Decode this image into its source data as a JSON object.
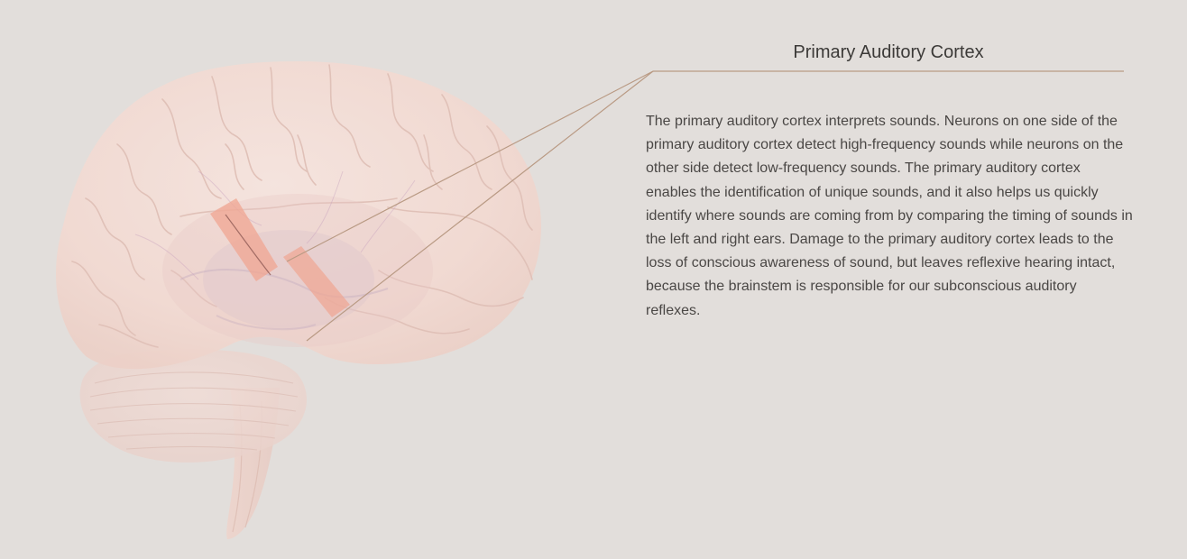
{
  "panel": {
    "title": "Primary Auditory Cortex",
    "description": "The primary auditory cortex interprets sounds. Neurons on one side of the primary auditory cortex detect high-frequency sounds while neurons on the other side detect low-frequency sounds. The primary auditory cortex enables the identification of unique sounds, and it also helps us quickly identify where sounds are coming from by comparing the timing of sounds in the left and right ears. Damage to the primary auditory cortex leads to the loss of conscious awareness of sound, but leaves reflexive hearing intact, because the brainstem is responsible for our subconscious auditory reflexes."
  },
  "colors": {
    "background": "#e2dedb",
    "brain": "#f3ddd6",
    "highlight": "#f0a592",
    "leader_line": "#b99a84"
  },
  "illustration": {
    "subject": "brain-lateral-view",
    "highlighted_region": "primary-auditory-cortex"
  }
}
